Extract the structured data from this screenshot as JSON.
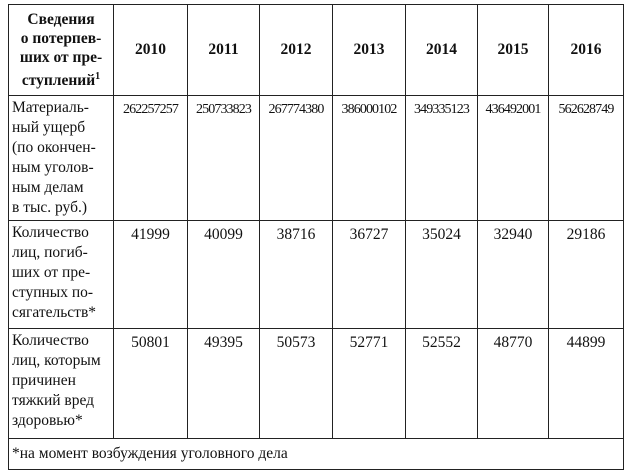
{
  "table": {
    "header": {
      "label_lines": [
        "Сведения",
        "о потерпев-",
        "ших от пре-",
        "ступлений"
      ],
      "label_sup": "1",
      "years": [
        2010,
        2011,
        2012,
        2013,
        2014,
        2015,
        2016
      ]
    },
    "rows": [
      {
        "label_lines": [
          "Материаль-",
          "ный ущерб",
          "(по окончен-",
          "ным уголов-",
          "ным делам",
          "в тыс. руб.)"
        ],
        "values": [
          262257257,
          250733823,
          267774380,
          386000102,
          349335123,
          436492001,
          562628749
        ]
      },
      {
        "label_lines": [
          "Количество",
          "лиц, погиб-",
          "ших от пре-",
          "ступных по-",
          "сягательств*"
        ],
        "values": [
          41999,
          40099,
          38716,
          36727,
          35024,
          32940,
          29186
        ]
      },
      {
        "label_lines": [
          "Количество",
          "лиц, которым",
          "причинен",
          "тяжкий вред",
          "здоровью*"
        ],
        "values": [
          50801,
          49395,
          50573,
          52771,
          52552,
          48770,
          44899
        ]
      }
    ],
    "footnote": "*на момент возбуждения уголовного дела"
  }
}
